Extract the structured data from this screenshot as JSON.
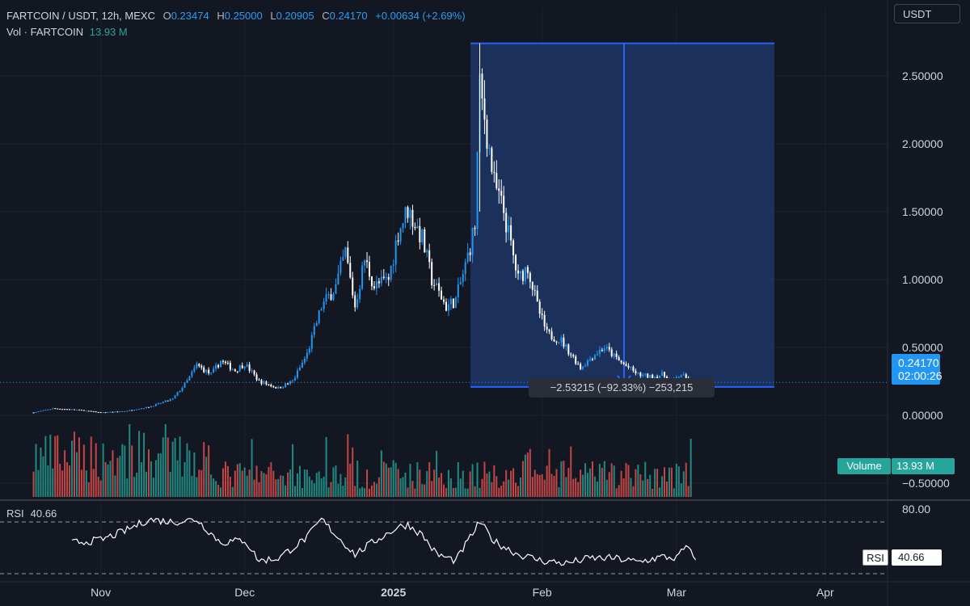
{
  "header": {
    "symbol": "FARTCOIN / USDT, 12h, MEXC",
    "o_label": "O",
    "o_value": "0.23474",
    "h_label": "H",
    "h_value": "0.25000",
    "l_label": "L",
    "l_value": "0.20905",
    "c_label": "C",
    "c_value": "0.24170",
    "change": "+0.00634 (+2.69%)",
    "vol_label": "Vol · FARTCOIN",
    "vol_value": "13.93 M"
  },
  "currency_button": "USDT",
  "last_price": {
    "price": "0.24170",
    "countdown": "02:00:26"
  },
  "volume_tag": {
    "label": "Volume",
    "value": "13.93 M"
  },
  "rsi": {
    "label": "RSI",
    "value": "40.66",
    "tag_label": "RSI",
    "tag_value": "40.66"
  },
  "measure": {
    "text": "−2.53215 (−92.33%) −253,215",
    "from_price": 2.74,
    "to_price": 0.2085
  },
  "colors": {
    "background": "#131722",
    "up": "#2196f3",
    "down": "#ffffff",
    "vol_up": "#26a69a",
    "vol_down": "#ef5350",
    "measure_fill": "#1f3a6e",
    "measure_line": "#2962ff"
  },
  "chart_data": {
    "type": "candlestick",
    "y_axis_ticks": [
      "2.50000",
      "2.00000",
      "1.50000",
      "1.00000",
      "0.50000",
      "0.00000",
      "−0.50000"
    ],
    "y_tick_values": [
      2.5,
      2.0,
      1.5,
      1.0,
      0.5,
      0.0,
      -0.5
    ],
    "ylim": [
      -0.62,
      3.0
    ],
    "x_axis_ticks": [
      "Nov",
      "Dec",
      "2025",
      "Feb",
      "Mar",
      "Apr"
    ],
    "x_tick_dates": [
      "2024-11-01",
      "2024-12-01",
      "2025-01-01",
      "2025-02-01",
      "2025-03-01",
      "2025-04-01"
    ],
    "x_range": [
      "2024-10-11",
      "2025-04-14"
    ],
    "series": [
      {
        "name": "FARTCOIN / USDT close (approx.)",
        "points": [
          [
            "2024-10-18",
            0.02
          ],
          [
            "2024-10-22",
            0.05
          ],
          [
            "2024-10-27",
            0.04
          ],
          [
            "2024-11-01",
            0.02
          ],
          [
            "2024-11-06",
            0.03
          ],
          [
            "2024-11-11",
            0.06
          ],
          [
            "2024-11-16",
            0.12
          ],
          [
            "2024-11-19",
            0.25
          ],
          [
            "2024-11-21",
            0.37
          ],
          [
            "2024-11-24",
            0.3
          ],
          [
            "2024-11-26",
            0.4
          ],
          [
            "2024-11-29",
            0.33
          ],
          [
            "2024-12-01",
            0.38
          ],
          [
            "2024-12-04",
            0.25
          ],
          [
            "2024-12-08",
            0.2
          ],
          [
            "2024-12-11",
            0.25
          ],
          [
            "2024-12-14",
            0.45
          ],
          [
            "2024-12-17",
            0.8
          ],
          [
            "2024-12-20",
            0.95
          ],
          [
            "2024-12-22",
            1.2
          ],
          [
            "2024-12-24",
            0.8
          ],
          [
            "2024-12-26",
            1.15
          ],
          [
            "2024-12-28",
            0.95
          ],
          [
            "2024-12-31",
            1.0
          ],
          [
            "2025-01-02",
            1.35
          ],
          [
            "2025-01-04",
            1.52
          ],
          [
            "2025-01-07",
            1.3
          ],
          [
            "2025-01-09",
            1.0
          ],
          [
            "2025-01-12",
            0.8
          ],
          [
            "2025-01-14",
            0.85
          ],
          [
            "2025-01-16",
            1.1
          ],
          [
            "2025-01-18",
            1.4
          ],
          [
            "2025-01-19",
            2.4
          ],
          [
            "2025-01-20",
            2.2
          ],
          [
            "2025-01-22",
            1.7
          ],
          [
            "2025-01-24",
            1.5
          ],
          [
            "2025-01-27",
            1.0
          ],
          [
            "2025-01-29",
            1.1
          ],
          [
            "2025-01-31",
            0.8
          ],
          [
            "2025-02-02",
            0.6
          ],
          [
            "2025-02-05",
            0.55
          ],
          [
            "2025-02-07",
            0.45
          ],
          [
            "2025-02-09",
            0.35
          ],
          [
            "2025-02-12",
            0.45
          ],
          [
            "2025-02-14",
            0.5
          ],
          [
            "2025-02-17",
            0.4
          ],
          [
            "2025-02-19",
            0.35
          ],
          [
            "2025-02-21",
            0.3
          ],
          [
            "2025-02-24",
            0.28
          ],
          [
            "2025-02-26",
            0.3
          ],
          [
            "2025-02-28",
            0.25
          ],
          [
            "2025-03-02",
            0.3
          ],
          [
            "2025-03-04",
            0.24
          ]
        ]
      },
      {
        "name": "RSI",
        "points": [
          [
            "2024-10-26",
            54
          ],
          [
            "2024-11-01",
            56
          ],
          [
            "2024-11-06",
            63
          ],
          [
            "2024-11-11",
            72
          ],
          [
            "2024-11-16",
            70
          ],
          [
            "2024-11-21",
            72
          ],
          [
            "2024-11-26",
            54
          ],
          [
            "2024-12-01",
            56
          ],
          [
            "2024-12-04",
            40
          ],
          [
            "2024-12-08",
            42
          ],
          [
            "2024-12-11",
            50
          ],
          [
            "2024-12-14",
            58
          ],
          [
            "2024-12-17",
            72
          ],
          [
            "2024-12-20",
            60
          ],
          [
            "2024-12-24",
            45
          ],
          [
            "2024-12-28",
            55
          ],
          [
            "2025-01-02",
            66
          ],
          [
            "2025-01-04",
            68
          ],
          [
            "2025-01-07",
            60
          ],
          [
            "2025-01-10",
            45
          ],
          [
            "2025-01-14",
            40
          ],
          [
            "2025-01-17",
            58
          ],
          [
            "2025-01-19",
            70
          ],
          [
            "2025-01-22",
            55
          ],
          [
            "2025-01-27",
            45
          ],
          [
            "2025-02-01",
            40
          ],
          [
            "2025-02-06",
            38
          ],
          [
            "2025-02-11",
            42
          ],
          [
            "2025-02-16",
            42
          ],
          [
            "2025-02-21",
            39
          ],
          [
            "2025-02-26",
            43
          ],
          [
            "2025-03-01",
            42
          ],
          [
            "2025-03-03",
            51
          ],
          [
            "2025-03-05",
            40.66
          ]
        ]
      }
    ],
    "rsi_levels": [
      "80.00"
    ],
    "rsi_dashed_levels": [
      70,
      30
    ],
    "rsi_ylim": [
      25,
      85
    ],
    "legend": "top-left",
    "grid": true
  }
}
